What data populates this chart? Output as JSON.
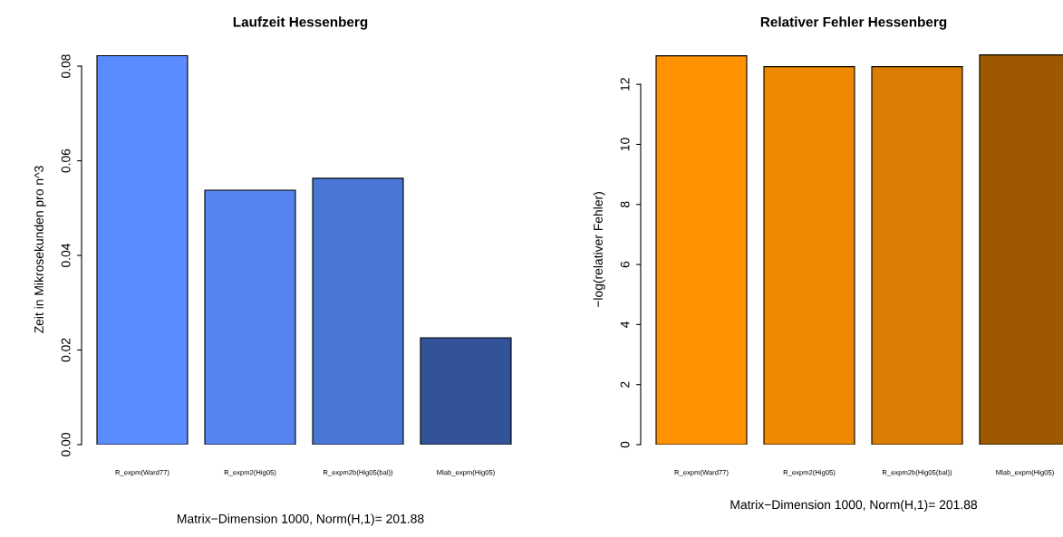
{
  "chart_data": [
    {
      "type": "bar",
      "title": "Laufzeit Hessenberg",
      "xlabel": "Matrix−Dimension 1000, Norm(H,1)= 201.88",
      "ylabel": "Zeit in Mikrosekunden pro n^3",
      "categories": [
        "R_expm(Ward77)",
        "R_expm2(Hig05)",
        "R_expm2b(Hig05(bal))",
        "Mlab_expm(Hig05)"
      ],
      "values": [
        0.0822,
        0.0538,
        0.0563,
        0.0226
      ],
      "colors": [
        "#5b8cff",
        "#5583ef",
        "#4a76d6",
        "#335399"
      ],
      "ylim": [
        0,
        0.0825
      ],
      "yticks": [
        {
          "value": 0,
          "label": "0.00"
        },
        {
          "value": 0.02,
          "label": "0.02"
        },
        {
          "value": 0.04,
          "label": "0.04"
        },
        {
          "value": 0.06,
          "label": "0.06"
        },
        {
          "value": 0.08,
          "label": "0.08"
        }
      ],
      "grid": false,
      "legend": false
    },
    {
      "type": "bar",
      "title": "Relativer Fehler Hessenberg",
      "xlabel": "Matrix−Dimension 1000, Norm(H,1)= 201.88",
      "ylabel": "−log(relativer Fehler)",
      "categories": [
        "R_expm(Ward77)",
        "R_expm2(Hig05)",
        "R_expm2b(Hig05(bal))",
        "Mlab_expm(Hig05)"
      ],
      "values": [
        12.95,
        12.59,
        12.59,
        12.98
      ],
      "colors": [
        "#ff9200",
        "#ef8a00",
        "#db7c03",
        "#9e5800"
      ],
      "ylim": [
        0,
        13.0
      ],
      "yticks": [
        0,
        2,
        4,
        6,
        8,
        10,
        12
      ],
      "grid": false,
      "legend": false
    }
  ]
}
